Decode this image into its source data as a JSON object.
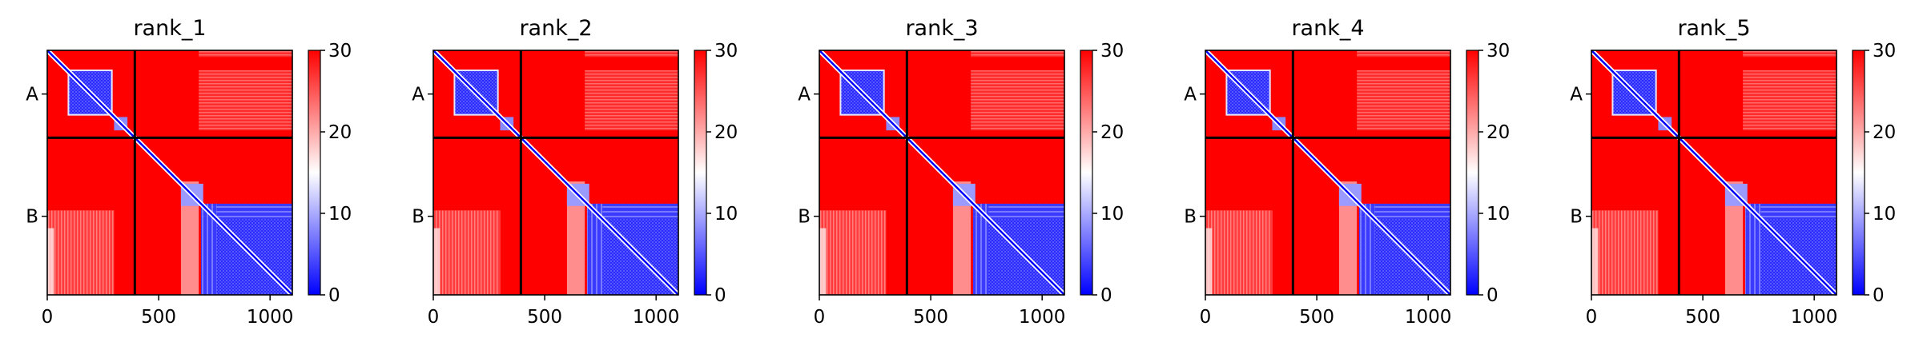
{
  "chart_data": {
    "type": "heatmap",
    "colormap": {
      "name": "bwr",
      "low": "#0000ff",
      "mid": "#ffffff",
      "high": "#ff0000",
      "vmin": 0,
      "vmax": 30
    },
    "colorbar_ticks": [
      0,
      10,
      20,
      30
    ],
    "x_ticks": [
      0,
      500,
      1000
    ],
    "xlim": [
      0,
      1100
    ],
    "ylim": [
      1100,
      0
    ],
    "chain_boundary": 393,
    "chain_labels": [
      "A",
      "B"
    ],
    "line_color": "#000000",
    "panels": [
      {
        "title": "rank_1"
      },
      {
        "title": "rank_2"
      },
      {
        "title": "rank_3"
      },
      {
        "title": "rank_4"
      },
      {
        "title": "rank_5"
      }
    ]
  }
}
